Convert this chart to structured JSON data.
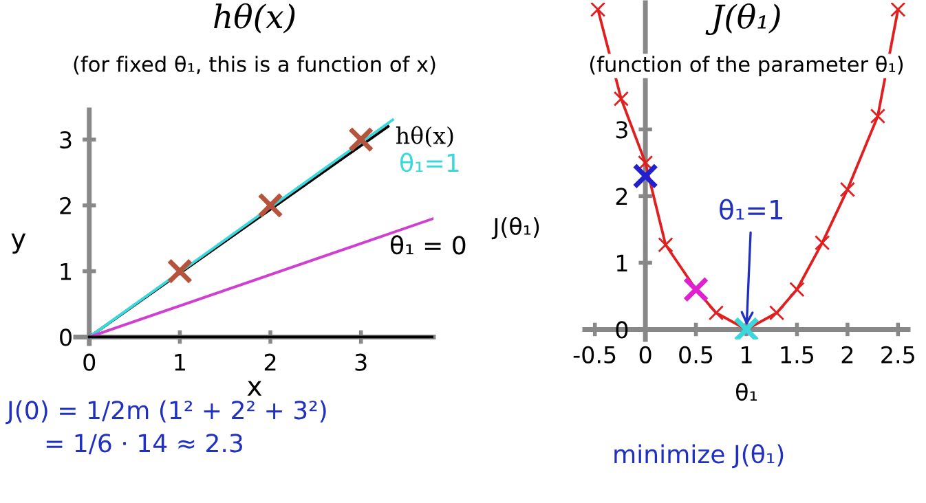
{
  "chart_data": [
    {
      "type": "line",
      "title": "hθ(x)",
      "subtitle": "(for fixed θ₁, this is a function of x)",
      "xlabel": "x",
      "ylabel": "y",
      "xlim": [
        -0.15,
        3.8
      ],
      "ylim": [
        -0.1,
        3.45
      ],
      "xticks": [
        0,
        1,
        2,
        3
      ],
      "yticks": [
        0,
        1,
        2,
        3
      ],
      "grid": false,
      "legend": false,
      "series": [
        {
          "type": "line",
          "color": "#000000",
          "x": [
            0,
            3.3
          ],
          "values": [
            0,
            3.2
          ]
        },
        {
          "type": "line",
          "color": "#3ad8dc",
          "x": [
            0,
            3.35
          ],
          "values": [
            0,
            3.3
          ]
        },
        {
          "type": "line",
          "color": "#d040d0",
          "x": [
            0,
            3.8
          ],
          "values": [
            0,
            1.8
          ]
        },
        {
          "type": "line",
          "color": "#000000",
          "x": [
            0,
            3.8
          ],
          "values": [
            0,
            0
          ]
        },
        {
          "type": "scatter",
          "marker": "cross",
          "color": "#b5533c",
          "x": [
            1,
            2,
            3
          ],
          "values": [
            1,
            2,
            3
          ]
        }
      ],
      "annotations": [
        {
          "text": "hθ(x)",
          "x": 3.3,
          "y": 3.2
        },
        "θ₁=1",
        "θ₁ = 0",
        "J(0) = 1/2m (1² + 2² + 3²)",
        "= 1/6 · 14 ≈ 2.3"
      ]
    },
    {
      "type": "line",
      "title": "J(θ₁)",
      "subtitle": "(function of the parameter θ₁)",
      "xlabel": "θ₁",
      "ylabel": "J(θ₁)",
      "xlim": [
        -0.6,
        2.6
      ],
      "ylim": [
        -0.15,
        4.9
      ],
      "xticks": [
        -0.5,
        0,
        0.5,
        1,
        1.5,
        2,
        2.5
      ],
      "yticks": [
        0,
        1,
        2,
        3
      ],
      "grid": false,
      "legend": false,
      "series": [
        {
          "type": "line",
          "marker": "cross",
          "color": "#e02020",
          "x": [
            -0.47,
            -0.24,
            0,
            0.2,
            0.5,
            0.7,
            1,
            1.3,
            1.5,
            1.75,
            2,
            2.3,
            2.5
          ],
          "values": [
            4.8,
            3.46,
            2.5,
            1.27,
            0.6,
            0.25,
            0,
            0.25,
            0.6,
            1.3,
            2.1,
            3.2,
            4.8
          ]
        },
        {
          "type": "scatter",
          "marker": "cross",
          "color": "#2020d0",
          "x": [
            0
          ],
          "values": [
            2.3
          ]
        },
        {
          "type": "scatter",
          "marker": "cross",
          "color": "#e020d0",
          "x": [
            0.5
          ],
          "values": [
            0.6
          ]
        },
        {
          "type": "scatter",
          "marker": "cross",
          "color": "#3ad8dc",
          "x": [
            1
          ],
          "values": [
            0
          ]
        }
      ],
      "annotations": [
        {
          "text": "θ₁=1",
          "x": 1,
          "y": 0
        },
        "minimize J(θ₁)"
      ]
    }
  ]
}
